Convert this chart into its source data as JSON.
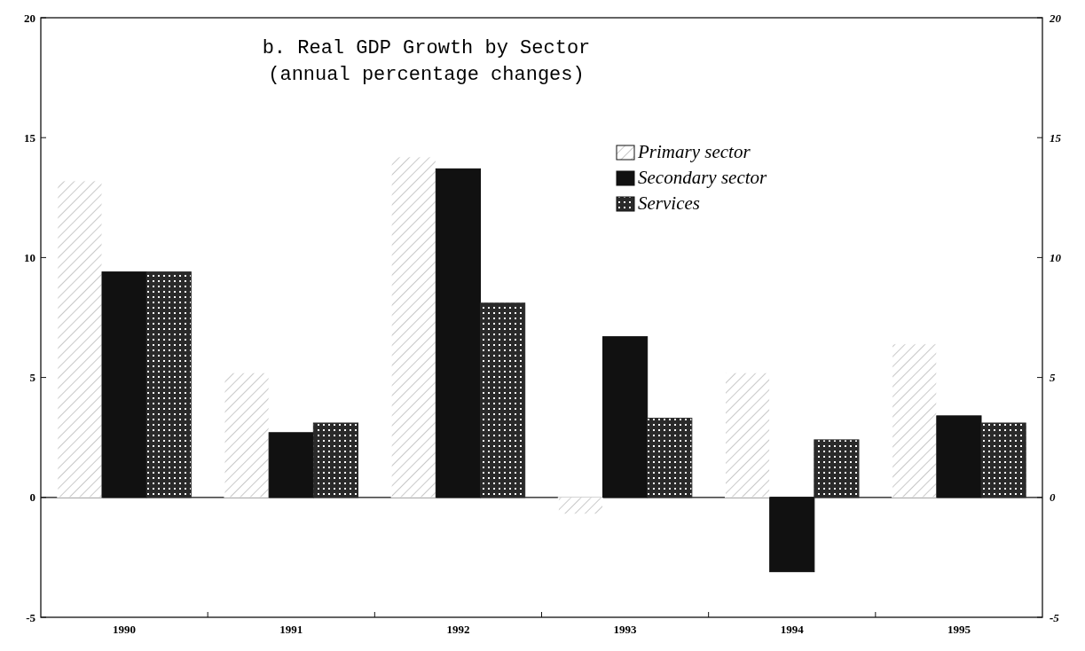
{
  "chart_data": {
    "type": "bar",
    "title": "b. Real GDP Growth by Sector",
    "subtitle": "(annual percentage changes)",
    "categories": [
      "1990",
      "1991",
      "1992",
      "1993",
      "1994",
      "1995"
    ],
    "series": [
      {
        "name": "Primary sector",
        "color": "#ffffff",
        "values": [
          13.2,
          5.2,
          14.2,
          -0.7,
          5.2,
          6.4
        ]
      },
      {
        "name": "Secondary sector",
        "color": "#111111",
        "values": [
          9.4,
          2.7,
          13.7,
          6.7,
          -3.1,
          3.4
        ]
      },
      {
        "name": "Services",
        "color": "#2a2a2a",
        "values": [
          9.4,
          3.1,
          8.1,
          3.3,
          2.4,
          3.1
        ]
      }
    ],
    "ylim": [
      -5,
      20
    ],
    "yticks": [
      -5,
      0,
      5,
      10,
      15,
      20
    ],
    "y2lim": [
      -5,
      20
    ],
    "y2ticks": [
      -5,
      0,
      5,
      10,
      15,
      20
    ],
    "legend": "top right"
  }
}
